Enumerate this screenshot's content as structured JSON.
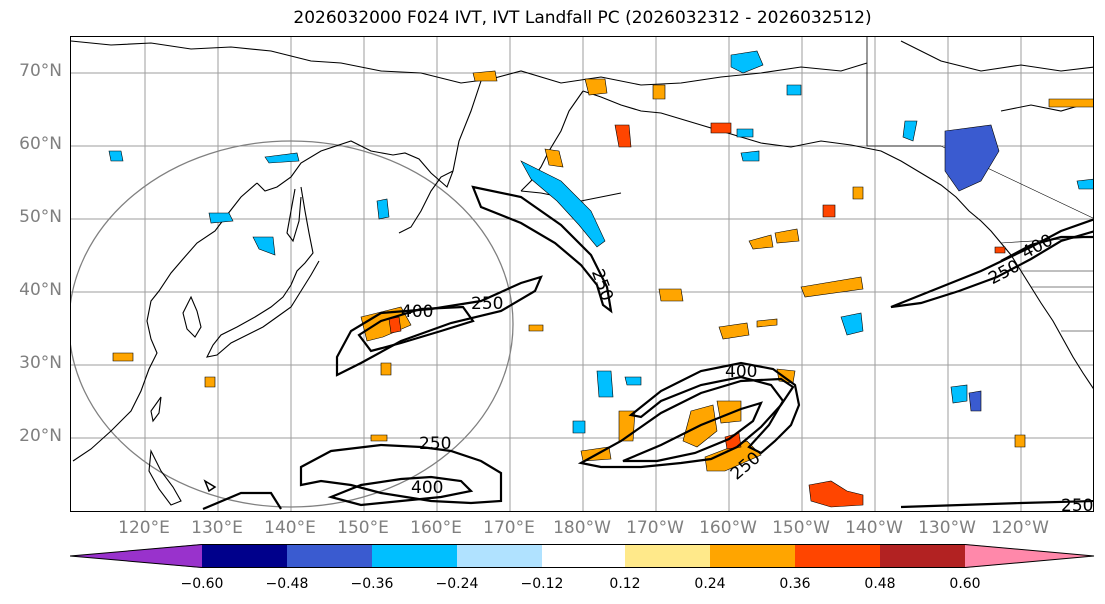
{
  "title": "2026032000 F024 IVT, IVT Landfall PC (2026032312 - 2026032512)",
  "lat_labels": [
    "70°N",
    "60°N",
    "50°N",
    "40°N",
    "30°N",
    "20°N"
  ],
  "lon_labels": [
    "120°E",
    "130°E",
    "140°E",
    "150°E",
    "160°E",
    "170°E",
    "180°W",
    "170°W",
    "160°W",
    "150°W",
    "140°W",
    "130°W",
    "120°W"
  ],
  "contour_labels": [
    "400",
    "250",
    "250",
    "400",
    "250",
    "400",
    "250",
    "250",
    "400",
    "250"
  ],
  "colorbar": {
    "colors": [
      "#9932cc",
      "#00008b",
      "#3a5bd0",
      "#00bfff",
      "#b0e2ff",
      "#ffffff",
      "#ffe98a",
      "#ffa500",
      "#ff4500",
      "#b22222",
      "#ff88aa"
    ],
    "ticks": [
      "−0.60",
      "−0.48",
      "−0.36",
      "−0.24",
      "−0.12",
      "0.12",
      "0.24",
      "0.36",
      "0.48",
      "0.60"
    ]
  },
  "colors": {
    "grid": "#9e9e9e",
    "coast": "#000000",
    "contour": "#000000",
    "circle": "#808080",
    "axis_label": "#7f7f7f"
  }
}
